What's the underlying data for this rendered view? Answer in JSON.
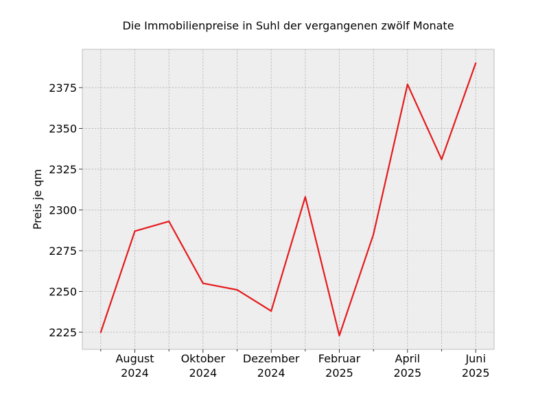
{
  "chart_data": {
    "type": "line",
    "title": "Die Immobilienpreise in Suhl der vergangenen zwölf Monate",
    "xlabel": "",
    "ylabel": "Preis je qm",
    "x": [
      "2024-07",
      "2024-08",
      "2024-09",
      "2024-10",
      "2024-11",
      "2024-12",
      "2025-01",
      "2025-02",
      "2025-03",
      "2025-04",
      "2025-05",
      "2025-06"
    ],
    "series": [
      {
        "values": [
          2225,
          2287,
          2293,
          2255,
          2251,
          2238,
          2308,
          2223,
          2285,
          2377,
          2331,
          2390
        ]
      }
    ],
    "x_ticks": [
      {
        "x": "2024-08",
        "label": [
          "August",
          "2024"
        ]
      },
      {
        "x": "2024-10",
        "label": [
          "Oktober",
          "2024"
        ]
      },
      {
        "x": "2024-12",
        "label": [
          "Dezember",
          "2024"
        ]
      },
      {
        "x": "2025-02",
        "label": [
          "Februar",
          "2025"
        ]
      },
      {
        "x": "2025-04",
        "label": [
          "April",
          "2025"
        ]
      },
      {
        "x": "2025-06",
        "label": [
          "Juni",
          "2025"
        ]
      }
    ],
    "x_minor_ticks": [
      "2024-07",
      "2024-09",
      "2024-11",
      "2025-01",
      "2025-03",
      "2025-05"
    ],
    "y_ticks": [
      2225,
      2250,
      2275,
      2300,
      2325,
      2350,
      2375
    ],
    "ylim": [
      2214.5,
      2398.5
    ],
    "grid": true,
    "line_color": "#E41A1C",
    "plot_background": "#EEEEEE",
    "grid_color": "#B2B2B2"
  }
}
